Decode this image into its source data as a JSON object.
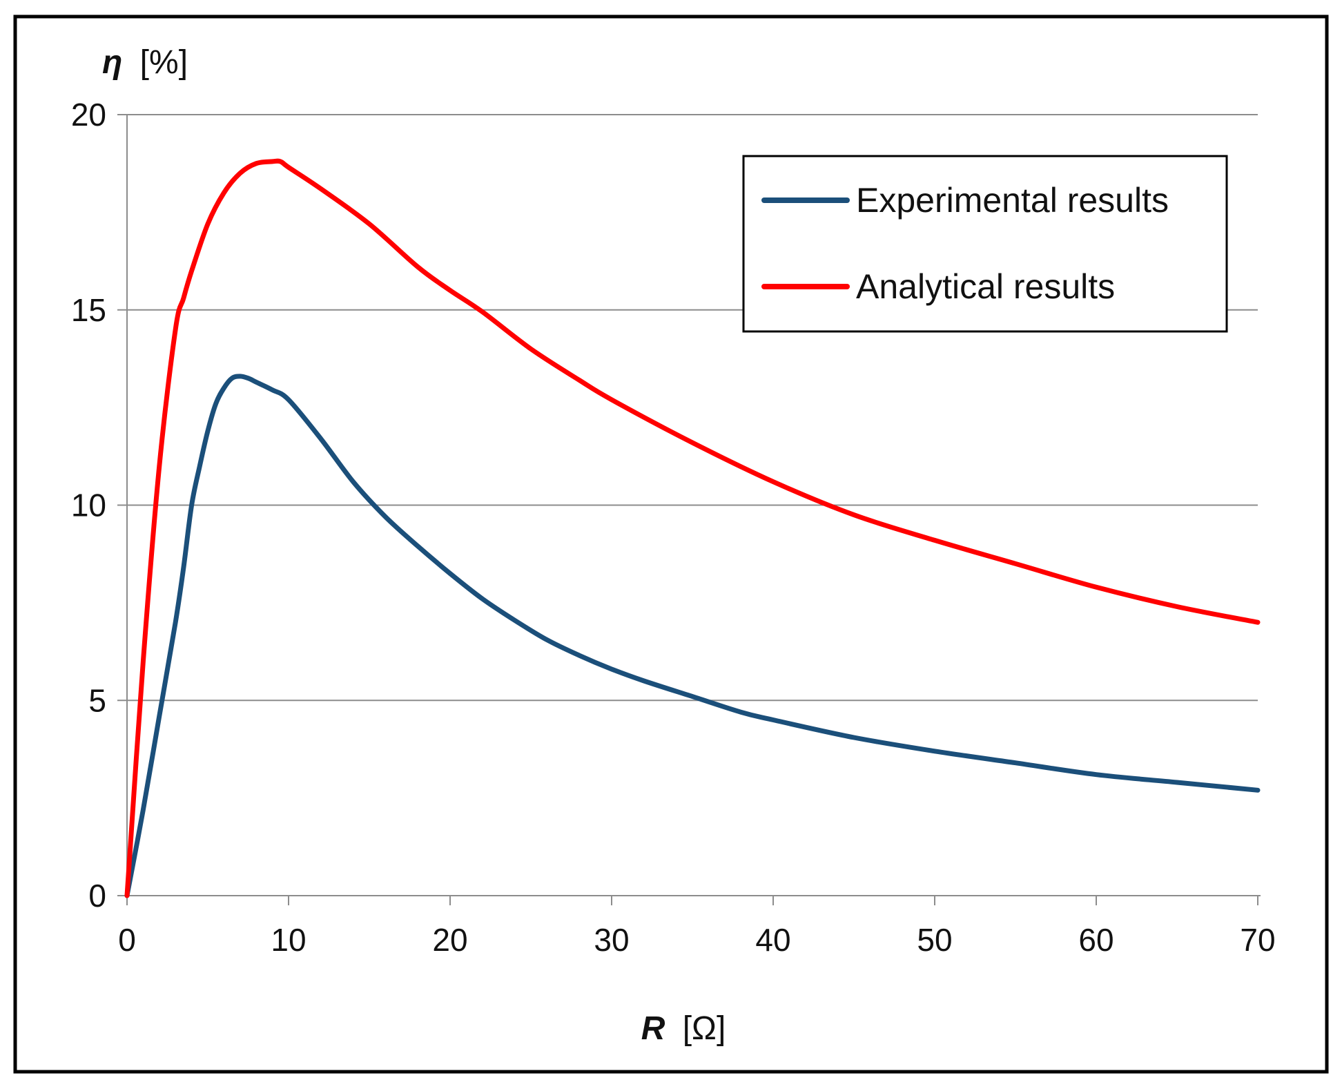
{
  "chart_data": {
    "type": "line",
    "title": "",
    "xlabel": {
      "var": "R",
      "unit": "[Ω]"
    },
    "ylabel": {
      "var": "η",
      "unit": "[%]"
    },
    "xlim": [
      0,
      70
    ],
    "ylim": [
      0,
      20
    ],
    "xticks": [
      0,
      10,
      20,
      30,
      40,
      50,
      60,
      70
    ],
    "yticks": [
      0,
      5,
      10,
      15,
      20
    ],
    "grid": "horizontal",
    "legend_position": "top-right",
    "series": [
      {
        "name": "Experimental results",
        "color": "#1b4f7a",
        "x": [
          0,
          1,
          2,
          3,
          3.5,
          4,
          4.5,
          5,
          5.5,
          6,
          6.5,
          7,
          7.5,
          8,
          9,
          10,
          12,
          14,
          16,
          18,
          20,
          22,
          24,
          26,
          28,
          30,
          32,
          35,
          38,
          40,
          45,
          50,
          55,
          60,
          65,
          70
        ],
        "y": [
          0,
          2.2,
          4.6,
          7.0,
          8.4,
          10.0,
          11.0,
          11.9,
          12.6,
          13.0,
          13.25,
          13.3,
          13.25,
          13.15,
          12.95,
          12.7,
          11.7,
          10.6,
          9.7,
          8.95,
          8.25,
          7.6,
          7.05,
          6.55,
          6.15,
          5.8,
          5.5,
          5.1,
          4.7,
          4.5,
          4.05,
          3.7,
          3.4,
          3.1,
          2.9,
          2.7
        ]
      },
      {
        "name": "Analytical results",
        "color": "#ff0000",
        "x": [
          0,
          1,
          2,
          3,
          3.5,
          4,
          5,
          6,
          7,
          8,
          9,
          9.5,
          10,
          12,
          15,
          18,
          20,
          22,
          25,
          28,
          30,
          35,
          40,
          45,
          50,
          55,
          60,
          65,
          70
        ],
        "y": [
          0,
          6.0,
          11.0,
          14.5,
          15.3,
          16.0,
          17.2,
          18.0,
          18.5,
          18.75,
          18.8,
          18.8,
          18.65,
          18.1,
          17.2,
          16.1,
          15.5,
          14.95,
          14.0,
          13.2,
          12.7,
          11.6,
          10.6,
          9.75,
          9.1,
          8.5,
          7.9,
          7.4,
          7.0
        ]
      }
    ]
  }
}
